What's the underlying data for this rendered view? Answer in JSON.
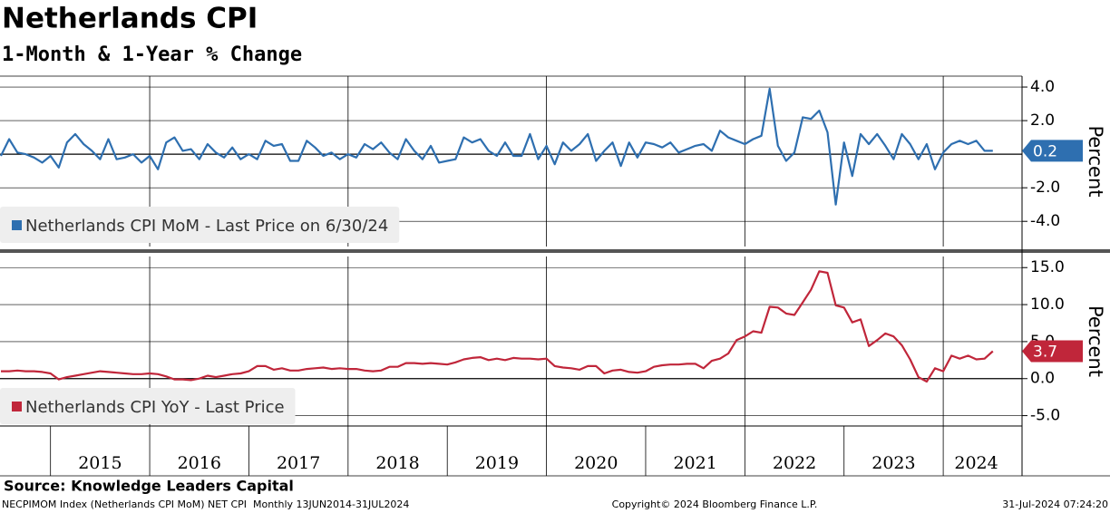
{
  "title": "Netherlands CPI",
  "subtitle": "1-Month & 1-Year % Change",
  "source": "Source: Knowledge Leaders Capital",
  "footer": {
    "left": "NECPIMOM Index (Netherlands CPI MoM) NET CPI  Monthly 13JUN2014-31JUL2024",
    "center": "Copyright© 2024 Bloomberg Finance L.P.",
    "right": "31-Jul-2024 07:24:20"
  },
  "chart_data": [
    {
      "type": "line",
      "ylabel": "Percent",
      "ylim": [
        -5.5,
        4.65
      ],
      "yticks": [
        {
          "value": -4,
          "label": "-4.0"
        },
        {
          "value": -2,
          "label": "-2.0"
        },
        {
          "value": 2,
          "label": "2.0"
        },
        {
          "value": 4,
          "label": "4.0"
        }
      ],
      "grid": true,
      "series": [
        {
          "name": "Netherlands CPI MoM - Last Price on 6/30/24",
          "color": "#2e6fb0",
          "values": [
            -0.1,
            0.9,
            0.1,
            0.0,
            -0.2,
            -0.5,
            -0.1,
            -0.8,
            0.7,
            1.2,
            0.6,
            0.2,
            -0.3,
            0.9,
            -0.3,
            -0.2,
            0.0,
            -0.5,
            -0.1,
            -0.9,
            0.7,
            1.0,
            0.2,
            0.3,
            -0.3,
            0.6,
            0.1,
            -0.2,
            0.4,
            -0.3,
            0.0,
            -0.3,
            0.8,
            0.5,
            0.6,
            -0.4,
            -0.4,
            0.8,
            0.4,
            -0.1,
            0.1,
            -0.3,
            0.0,
            -0.2,
            0.6,
            0.3,
            0.7,
            0.1,
            -0.3,
            0.9,
            0.2,
            -0.3,
            0.5,
            -0.5,
            -0.4,
            -0.3,
            1.0,
            0.7,
            0.9,
            0.2,
            -0.1,
            0.7,
            -0.1,
            -0.1,
            1.2,
            -0.3,
            0.5,
            -0.6,
            0.7,
            0.2,
            0.6,
            1.2,
            -0.4,
            0.2,
            0.7,
            -0.7,
            0.7,
            -0.2,
            0.7,
            0.6,
            0.4,
            0.7,
            0.1,
            0.3,
            0.5,
            0.6,
            0.2,
            1.4,
            1.0,
            0.8,
            0.6,
            0.9,
            1.1,
            3.9,
            0.5,
            -0.4,
            0.1,
            2.2,
            2.1,
            2.6,
            1.3,
            -3.0,
            0.7,
            -1.3,
            1.2,
            0.6,
            1.2,
            0.5,
            -0.3,
            1.2,
            0.6,
            -0.3,
            0.6,
            -0.9,
            0.1,
            0.6,
            0.8,
            0.6,
            0.8,
            0.2,
            0.2
          ]
        }
      ]
    },
    {
      "type": "line",
      "ylabel": "Percent",
      "ylim": [
        -6.4,
        16.5
      ],
      "yticks": [
        {
          "value": -5,
          "label": "-5.0"
        },
        {
          "value": 0,
          "label": "0.0"
        },
        {
          "value": 5,
          "label": "5.0"
        },
        {
          "value": 10,
          "label": "10.0"
        },
        {
          "value": 15,
          "label": "15.0"
        }
      ],
      "grid": true,
      "categories": [
        null,
        null,
        null,
        null,
        null,
        null,
        null,
        null,
        null,
        null,
        null,
        null,
        "2015",
        null,
        null,
        null,
        null,
        null,
        null,
        null,
        null,
        null,
        null,
        null,
        "2016",
        null,
        null,
        null,
        null,
        null,
        null,
        null,
        null,
        null,
        null,
        null,
        "2017",
        null,
        null,
        null,
        null,
        null,
        null,
        null,
        null,
        null,
        null,
        null,
        "2018",
        null,
        null,
        null,
        null,
        null,
        null,
        null,
        null,
        null,
        null,
        null,
        "2019",
        null,
        null,
        null,
        null,
        null,
        null,
        null,
        null,
        null,
        null,
        null,
        "2020",
        null,
        null,
        null,
        null,
        null,
        null,
        null,
        null,
        null,
        null,
        null,
        "2021",
        null,
        null,
        null,
        null,
        null,
        null,
        null,
        null,
        null,
        null,
        null,
        "2022",
        null,
        null,
        null,
        null,
        null,
        null,
        null,
        null,
        null,
        null,
        null,
        "2023",
        null,
        null,
        null,
        null,
        null,
        null,
        null,
        null,
        null,
        "2024",
        null,
        null
      ],
      "series": [
        {
          "name": "Netherlands CPI YoY - Last Price",
          "color": "#c0263a",
          "values": [
            1.0,
            1.0,
            1.1,
            1.0,
            1.0,
            0.9,
            0.7,
            -0.1,
            0.2,
            0.4,
            0.6,
            0.8,
            1.0,
            0.9,
            0.8,
            0.7,
            0.6,
            0.6,
            0.7,
            0.6,
            0.3,
            -0.1,
            -0.1,
            -0.2,
            0.0,
            0.4,
            0.2,
            0.4,
            0.6,
            0.7,
            1.0,
            1.7,
            1.7,
            1.2,
            1.4,
            1.1,
            1.1,
            1.3,
            1.4,
            1.5,
            1.3,
            1.4,
            1.3,
            1.3,
            1.1,
            1.0,
            1.1,
            1.6,
            1.6,
            2.1,
            2.1,
            2.0,
            2.1,
            2.0,
            1.9,
            2.2,
            2.6,
            2.8,
            2.9,
            2.5,
            2.7,
            2.5,
            2.8,
            2.7,
            2.7,
            2.6,
            2.7,
            1.7,
            1.5,
            1.4,
            1.2,
            1.7,
            1.7,
            0.7,
            1.1,
            1.2,
            0.9,
            0.8,
            1.0,
            1.6,
            1.8,
            1.9,
            1.9,
            2.0,
            2.0,
            1.4,
            2.4,
            2.7,
            3.4,
            5.2,
            5.7,
            6.4,
            6.2,
            9.7,
            9.6,
            8.8,
            8.6,
            10.3,
            12.0,
            14.5,
            14.3,
            9.9,
            9.6,
            7.6,
            8.0,
            4.4,
            5.2,
            6.1,
            5.7,
            4.5,
            2.6,
            0.2,
            -0.4,
            1.4,
            1.0,
            3.1,
            2.7,
            3.1,
            2.6,
            2.7,
            3.7
          ]
        }
      ]
    }
  ]
}
